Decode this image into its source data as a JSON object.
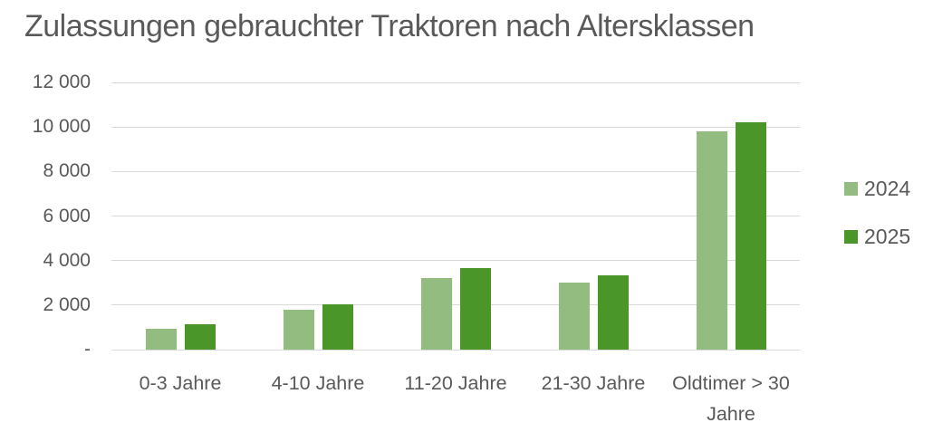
{
  "chart_data": {
    "type": "bar",
    "title": "Zulassungen gebrauchter Traktoren nach Altersklassen",
    "categories": [
      "0-3 Jahre",
      "4-10 Jahre",
      "11-20 Jahre",
      "21-30 Jahre",
      "Oldtimer > 30 Jahre"
    ],
    "series": [
      {
        "name": "2024",
        "color": "#93bd80",
        "values": [
          950,
          1800,
          3200,
          3000,
          9800
        ]
      },
      {
        "name": "2025",
        "color": "#4b9628",
        "values": [
          1150,
          2050,
          3650,
          3350,
          10200
        ]
      }
    ],
    "xlabel": "",
    "ylabel": "",
    "ylim": [
      0,
      12000
    ],
    "y_ticks": [
      {
        "value": 12000,
        "label": "12 000"
      },
      {
        "value": 10000,
        "label": "10 000"
      },
      {
        "value": 8000,
        "label": "8 000"
      },
      {
        "value": 6000,
        "label": "6 000"
      },
      {
        "value": 4000,
        "label": "4 000"
      },
      {
        "value": 2000,
        "label": "2 000"
      },
      {
        "value": 0,
        "label": "-"
      }
    ],
    "grid": true,
    "legend_position": "right",
    "colors": {
      "text": "#595959",
      "gridline": "#d9d9d9",
      "background": "#ffffff"
    }
  }
}
